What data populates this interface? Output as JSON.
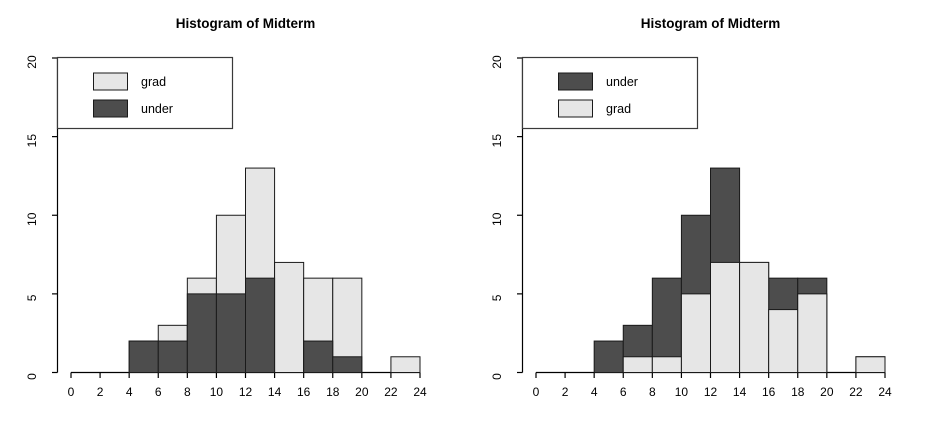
{
  "colors": {
    "light": "#e6e6e6",
    "dark": "#4d4d4d",
    "bar_stroke": "#1a1a1a",
    "axis": "#000000",
    "legend_border": "#3a3a3a",
    "text": "#000000",
    "background": "#ffffff"
  },
  "chart_data": [
    {
      "type": "bar",
      "variant": "overlaid-histogram",
      "panel": "left",
      "title": "Histogram of Midterm",
      "xlabel": "",
      "ylabel": "",
      "xlim": [
        0,
        24
      ],
      "ylim": [
        0,
        20
      ],
      "x_ticks": [
        0,
        2,
        4,
        6,
        8,
        10,
        12,
        14,
        16,
        18,
        20,
        22,
        24
      ],
      "y_ticks": [
        0,
        5,
        10,
        15,
        20
      ],
      "grid": false,
      "bins": {
        "start": 4,
        "width": 2,
        "count": 10
      },
      "series": [
        {
          "name": "grad",
          "fill": "light",
          "layer": "back",
          "values": [
            2,
            3,
            6,
            10,
            13,
            7,
            6,
            6,
            0,
            1
          ]
        },
        {
          "name": "under",
          "fill": "dark",
          "layer": "front",
          "values": [
            2,
            2,
            5,
            5,
            6,
            0,
            2,
            1,
            0,
            0
          ]
        }
      ],
      "legend": {
        "position": "top-left",
        "entries": [
          {
            "label": "grad",
            "fill": "light"
          },
          {
            "label": "under",
            "fill": "dark"
          }
        ]
      }
    },
    {
      "type": "bar",
      "variant": "overlaid-histogram",
      "panel": "right",
      "title": "Histogram of Midterm",
      "xlabel": "",
      "ylabel": "",
      "xlim": [
        0,
        24
      ],
      "ylim": [
        0,
        20
      ],
      "x_ticks": [
        0,
        2,
        4,
        6,
        8,
        10,
        12,
        14,
        16,
        18,
        20,
        22,
        24
      ],
      "y_ticks": [
        0,
        5,
        10,
        15,
        20
      ],
      "grid": false,
      "bins": {
        "start": 4,
        "width": 2,
        "count": 10
      },
      "series": [
        {
          "name": "under",
          "fill": "dark",
          "layer": "back",
          "values": [
            2,
            3,
            6,
            10,
            13,
            7,
            6,
            6,
            0,
            1
          ]
        },
        {
          "name": "grad",
          "fill": "light",
          "layer": "front",
          "values": [
            0,
            1,
            1,
            5,
            7,
            7,
            4,
            5,
            0,
            1
          ]
        }
      ],
      "legend": {
        "position": "top-left",
        "entries": [
          {
            "label": "under",
            "fill": "dark"
          },
          {
            "label": "grad",
            "fill": "light"
          }
        ]
      }
    }
  ]
}
